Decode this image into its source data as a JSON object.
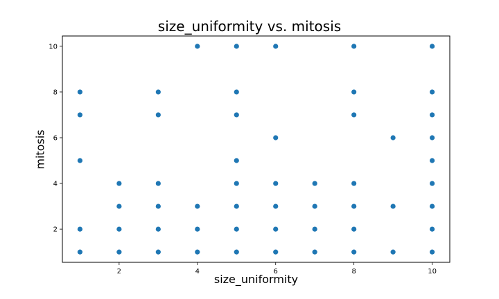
{
  "chart_data": {
    "type": "scatter",
    "title": "size_uniformity vs. mitosis",
    "xlabel": "size_uniformity",
    "ylabel": "mitosis",
    "xlim": [
      0.55,
      10.45
    ],
    "ylim": [
      0.55,
      10.45
    ],
    "xticks": [
      2,
      4,
      6,
      8,
      10
    ],
    "yticks": [
      2,
      4,
      6,
      8,
      10
    ],
    "grid": false,
    "marker_color": "#1f77b4",
    "points": [
      [
        1,
        1
      ],
      [
        1,
        2
      ],
      [
        1,
        5
      ],
      [
        1,
        7
      ],
      [
        1,
        8
      ],
      [
        2,
        1
      ],
      [
        2,
        2
      ],
      [
        2,
        3
      ],
      [
        2,
        4
      ],
      [
        3,
        1
      ],
      [
        3,
        2
      ],
      [
        3,
        3
      ],
      [
        3,
        4
      ],
      [
        3,
        7
      ],
      [
        3,
        8
      ],
      [
        4,
        1
      ],
      [
        4,
        2
      ],
      [
        4,
        3
      ],
      [
        4,
        10
      ],
      [
        5,
        1
      ],
      [
        5,
        2
      ],
      [
        5,
        3
      ],
      [
        5,
        4
      ],
      [
        5,
        5
      ],
      [
        5,
        7
      ],
      [
        5,
        8
      ],
      [
        5,
        10
      ],
      [
        6,
        1
      ],
      [
        6,
        2
      ],
      [
        6,
        3
      ],
      [
        6,
        4
      ],
      [
        6,
        6
      ],
      [
        6,
        10
      ],
      [
        7,
        1
      ],
      [
        7,
        2
      ],
      [
        7,
        3
      ],
      [
        7,
        4
      ],
      [
        8,
        1
      ],
      [
        8,
        2
      ],
      [
        8,
        3
      ],
      [
        8,
        4
      ],
      [
        8,
        7
      ],
      [
        8,
        8
      ],
      [
        8,
        10
      ],
      [
        9,
        1
      ],
      [
        9,
        3
      ],
      [
        9,
        6
      ],
      [
        10,
        1
      ],
      [
        10,
        2
      ],
      [
        10,
        3
      ],
      [
        10,
        4
      ],
      [
        10,
        5
      ],
      [
        10,
        6
      ],
      [
        10,
        7
      ],
      [
        10,
        8
      ],
      [
        10,
        10
      ]
    ]
  }
}
